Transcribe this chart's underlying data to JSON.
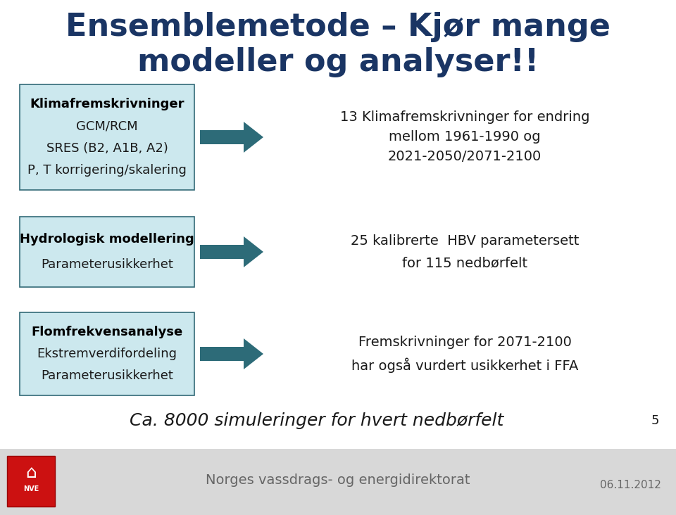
{
  "title_line1": "Ensemblemetode – Kjør mange",
  "title_line2": "modeller og analyser!!",
  "title_color": "#1a3564",
  "title_fontsize": 32,
  "box1_bold": "Klimafremskrivninger",
  "box1_lines": [
    "GCM/RCM",
    "SRES (B2, A1B, A2)",
    "P, T korrigering/skalering"
  ],
  "box2_bold": "Hydrologisk modellering",
  "box2_lines": [
    "Parameterusikkerhet"
  ],
  "box3_bold": "Flomfrekvensanalyse",
  "box3_lines": [
    "Ekstremverdifordeling",
    "Parameterusikkerhet"
  ],
  "text1_line1": "13 Klimafremskrivninger for endring",
  "text1_line2": "mellom 1961-1990 og",
  "text1_line3": "2021-2050/2071-2100",
  "text2_line1": "25 kalibrerte  HBV parametersett",
  "text2_line2": "for 115 nedbørfelt",
  "text3_line1": "Fremskrivninger for 2071-2100",
  "text3_line2": "har også vurdert usikkerhet i FFA",
  "bottom_text": "Ca. 8000 simuleringer for hvert nedbørfelt",
  "page_num": "5",
  "footer_text": "Norges vassdrags- og energidirektorat",
  "footer_date": "06.11.2012",
  "box_fill": "#cce8ee",
  "box_edge": "#336b78",
  "arrow_color": "#2d6b78",
  "bg_color": "#ffffff",
  "footer_bg": "#d8d8d8",
  "text_color": "#1a1a1a",
  "bold_color": "#000000",
  "footer_text_color": "#666666"
}
